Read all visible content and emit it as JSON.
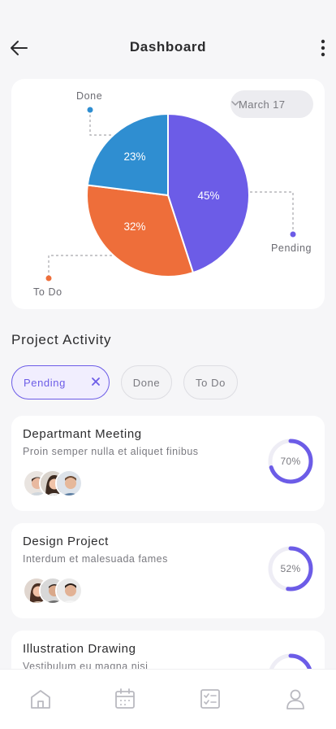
{
  "header": {
    "title": "Dashboard",
    "back_icon": "arrow-left-icon",
    "menu_icon": "vertical-dots-icon"
  },
  "chart": {
    "date_filter": "March 17",
    "colors": {
      "pending": "#6c5ce7",
      "todo": "#ee6e3a",
      "done": "#2f8ed1"
    }
  },
  "chart_data": {
    "type": "pie",
    "title": "",
    "slices": [
      {
        "label": "Pending",
        "value": 45,
        "value_label": "45%",
        "color": "#6c5ce7"
      },
      {
        "label": "To Do",
        "value": 32,
        "value_label": "32%",
        "color": "#ee6e3a"
      },
      {
        "label": "Done",
        "value": 23,
        "value_label": "23%",
        "color": "#2f8ed1"
      }
    ]
  },
  "activity": {
    "title": "Project Activity",
    "filters": [
      "Pending",
      "Done",
      "To Do"
    ],
    "active_filter": "Pending"
  },
  "tasks": [
    {
      "title": "Departmant Meeting",
      "description": "Proin semper nulla et aliquet finibus",
      "progress": 70,
      "progress_label": "70%"
    },
    {
      "title": "Design Project",
      "description": "Interdum et malesuada fames",
      "progress": 52,
      "progress_label": "52%"
    },
    {
      "title": "Illustration Drawing",
      "description": "Vestibulum eu magna nisi",
      "progress": 40,
      "progress_label": ""
    }
  ],
  "nav": {
    "items": [
      "home-icon",
      "calendar-icon",
      "checklist-icon",
      "profile-icon"
    ],
    "accent": "#6c5ce7",
    "inactive": "#b9b9c0"
  }
}
